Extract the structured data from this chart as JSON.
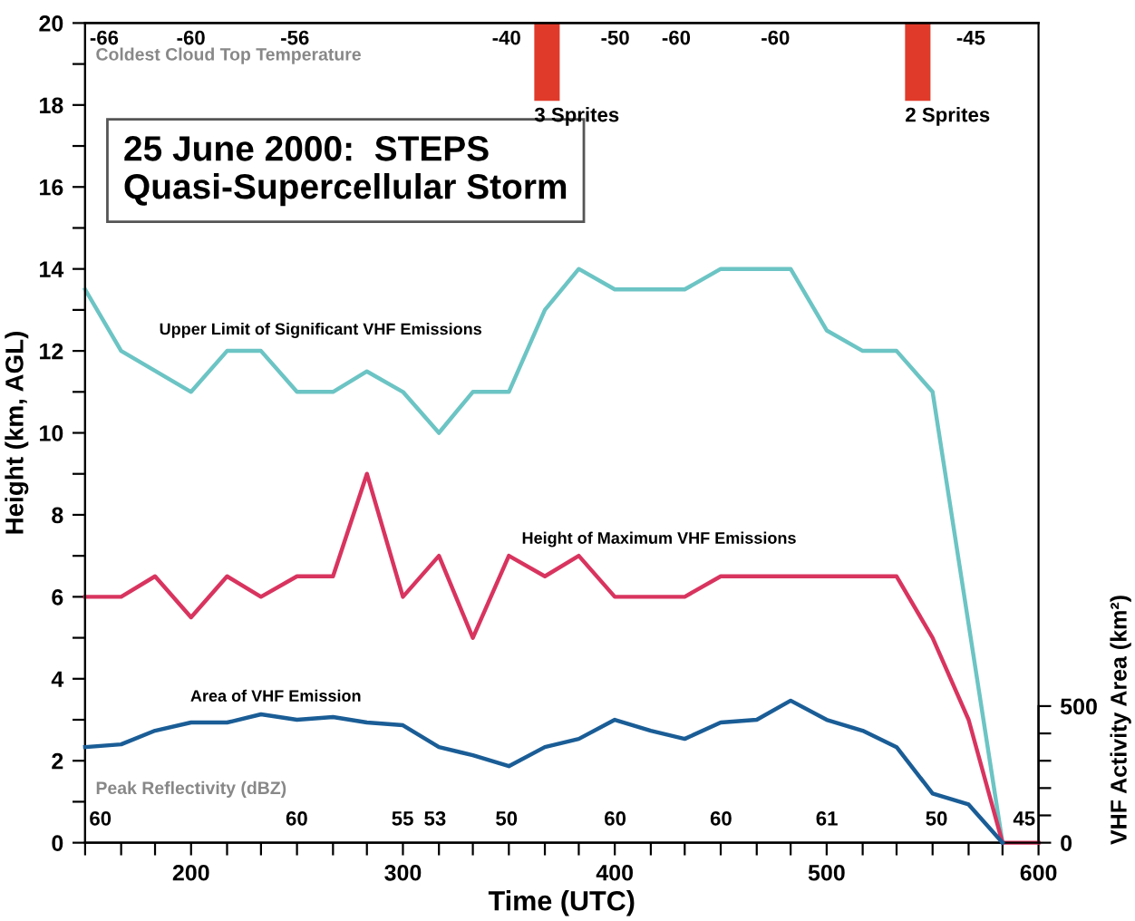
{
  "chart_data": {
    "type": "line",
    "title": "25 June 2000:  STEPS\nQuasi-Supercellular Storm",
    "xlabel": "Time (UTC)",
    "ylabel": "Height (km, AGL)",
    "y2label": "VHF Activity Area (km²)",
    "xlim": [
      150,
      600
    ],
    "ylim": [
      0,
      20
    ],
    "y2lim": [
      0,
      3000
    ],
    "xticks": [
      {
        "value": 150,
        "label": null
      },
      {
        "value": 167,
        "label": null
      },
      {
        "value": 183,
        "label": null
      },
      200,
      {
        "value": 217,
        "label": null
      },
      {
        "value": 233,
        "label": null
      },
      {
        "value": 250,
        "label": null
      },
      {
        "value": 267,
        "label": null
      },
      {
        "value": 283,
        "label": null
      },
      300,
      {
        "value": 317,
        "label": null
      },
      {
        "value": 333,
        "label": null
      },
      {
        "value": 350,
        "label": null
      },
      {
        "value": 367,
        "label": null
      },
      {
        "value": 383,
        "label": null
      },
      400,
      {
        "value": 417,
        "label": null
      },
      {
        "value": 433,
        "label": null
      },
      {
        "value": 450,
        "label": null
      },
      {
        "value": 467,
        "label": null
      },
      {
        "value": 483,
        "label": null
      },
      500,
      {
        "value": 517,
        "label": null
      },
      {
        "value": 533,
        "label": null
      },
      {
        "value": 550,
        "label": null
      },
      {
        "value": 567,
        "label": null
      },
      {
        "value": 583,
        "label": null
      },
      600
    ],
    "yticks": [
      0,
      {
        "value": 1,
        "label": null
      },
      2,
      {
        "value": 3,
        "label": null
      },
      4,
      {
        "value": 5,
        "label": null
      },
      6,
      {
        "value": 7,
        "label": null
      },
      8,
      {
        "value": 9,
        "label": null
      },
      10,
      {
        "value": 11,
        "label": null
      },
      12,
      {
        "value": 13,
        "label": null
      },
      14,
      {
        "value": 15,
        "label": null
      },
      16,
      {
        "value": 17,
        "label": null
      },
      18,
      {
        "value": 19,
        "label": null
      },
      20
    ],
    "y2ticks": [
      0,
      {
        "value": 100,
        "label": null
      },
      {
        "value": 200,
        "label": null
      },
      {
        "value": 300,
        "label": null
      },
      {
        "value": 400,
        "label": null
      },
      500
    ],
    "grid": false,
    "legend": false,
    "marker": "none",
    "line_style": "solid",
    "series": [
      {
        "color": "#6cc4c4",
        "x": [
          150,
          167,
          200,
          217,
          233,
          250,
          267,
          283,
          300,
          317,
          333,
          350,
          367,
          383,
          400,
          433,
          450,
          483,
          500,
          517,
          533,
          550,
          583
        ],
        "values": [
          13.5,
          12,
          11,
          12,
          12,
          11,
          11,
          11.5,
          11,
          10,
          11,
          11,
          13,
          14,
          13.5,
          13.5,
          14,
          14,
          12.5,
          12,
          12,
          11,
          0
        ]
      },
      {
        "color": "#d8345f",
        "x": [
          150,
          167,
          183,
          200,
          217,
          233,
          250,
          267,
          283,
          300,
          317,
          333,
          350,
          367,
          383,
          400,
          433,
          450,
          533,
          550,
          567,
          583,
          600
        ],
        "values": [
          6,
          6,
          6.5,
          5.5,
          6.5,
          6,
          6.5,
          6.5,
          9,
          6,
          7,
          5,
          7,
          6.5,
          7,
          6,
          6,
          6.5,
          6.5,
          5,
          3,
          0,
          0
        ]
      },
      {
        "color": "#1a5d96",
        "axis": "y2",
        "x": [
          150,
          167,
          183,
          200,
          217,
          233,
          250,
          267,
          283,
          300,
          317,
          333,
          350,
          367,
          383,
          400,
          417,
          433,
          450,
          467,
          483,
          500,
          517,
          533,
          550,
          567,
          583
        ],
        "values": [
          350,
          360,
          410,
          440,
          440,
          470,
          450,
          460,
          440,
          430,
          350,
          320,
          280,
          350,
          380,
          450,
          410,
          380,
          440,
          450,
          520,
          450,
          410,
          350,
          180,
          140,
          0
        ]
      },
      {
        "type": "bar",
        "color": "#e03a2a",
        "x": [
          368,
          543
        ],
        "base": [
          18.1,
          18.1
        ],
        "values": [
          1.9,
          1.9
        ]
      }
    ],
    "annotations": [
      {
        "text": "3 Sprites",
        "x": 368,
        "y": 18.1
      },
      {
        "text": "2 Sprites",
        "x": 543,
        "y": 18.1
      },
      "Coldest Cloud Top Temperature",
      "-66",
      "-60",
      "-56",
      "-40",
      "-50",
      "-60",
      "-60",
      "-45",
      "Upper Limit of Significant VHF Emissions",
      "Height of Maximum VHF Emissions",
      "Area of VHF Emission",
      "Peak Reflectivity (dBZ)",
      "60",
      "60",
      "55",
      "53",
      "50",
      "60",
      "60",
      "61",
      "50",
      "45"
    ]
  }
}
